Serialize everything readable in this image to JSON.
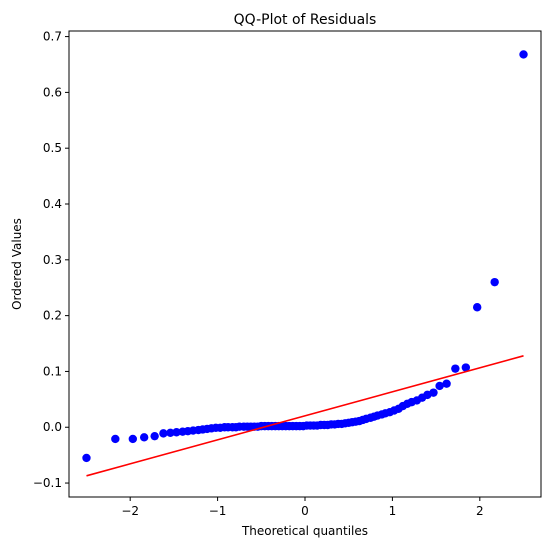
{
  "chart_data": {
    "type": "scatter",
    "title": "QQ-Plot of Residuals",
    "xlabel": "Theoretical quantiles",
    "ylabel": "Ordered Values",
    "xlim": [
      -2.7,
      2.7
    ],
    "ylim": [
      -0.125,
      0.71
    ],
    "xticks": [
      -2,
      -1,
      0,
      1,
      2
    ],
    "xtick_labels": [
      "−2",
      "−1",
      "0",
      "1",
      "2"
    ],
    "yticks": [
      -0.1,
      0.0,
      0.1,
      0.2,
      0.3,
      0.4,
      0.5,
      0.6,
      0.7
    ],
    "ytick_labels": [
      "−0.1",
      "0.0",
      "0.1",
      "0.2",
      "0.3",
      "0.4",
      "0.5",
      "0.6",
      "0.7"
    ],
    "grid": false,
    "point_color": "#0000ff",
    "line_color": "#ff0000",
    "fit_line": {
      "x": [
        -2.5,
        2.5
      ],
      "y": [
        -0.087,
        0.128
      ]
    },
    "points": [
      {
        "x": -2.5,
        "y": -0.055
      },
      {
        "x": -2.17,
        "y": -0.021
      },
      {
        "x": -1.97,
        "y": -0.021
      },
      {
        "x": -1.84,
        "y": -0.018
      },
      {
        "x": -1.72,
        "y": -0.016
      },
      {
        "x": -1.62,
        "y": -0.011
      },
      {
        "x": -1.54,
        "y": -0.01
      },
      {
        "x": -1.47,
        "y": -0.009
      },
      {
        "x": -1.4,
        "y": -0.008
      },
      {
        "x": -1.34,
        "y": -0.007
      },
      {
        "x": -1.28,
        "y": -0.006
      },
      {
        "x": -1.22,
        "y": -0.005
      },
      {
        "x": -1.17,
        "y": -0.004
      },
      {
        "x": -1.12,
        "y": -0.003
      },
      {
        "x": -1.07,
        "y": -0.002
      },
      {
        "x": -1.02,
        "y": -0.001
      },
      {
        "x": -0.97,
        "y": -0.001
      },
      {
        "x": -0.92,
        "y": 0.0
      },
      {
        "x": -0.88,
        "y": 0.0
      },
      {
        "x": -0.83,
        "y": 0.0
      },
      {
        "x": -0.79,
        "y": 0.0
      },
      {
        "x": -0.75,
        "y": 0.001
      },
      {
        "x": -0.7,
        "y": 0.001
      },
      {
        "x": -0.66,
        "y": 0.001
      },
      {
        "x": -0.62,
        "y": 0.001
      },
      {
        "x": -0.58,
        "y": 0.001
      },
      {
        "x": -0.54,
        "y": 0.001
      },
      {
        "x": -0.5,
        "y": 0.002
      },
      {
        "x": -0.46,
        "y": 0.002
      },
      {
        "x": -0.42,
        "y": 0.002
      },
      {
        "x": -0.38,
        "y": 0.002
      },
      {
        "x": -0.34,
        "y": 0.002
      },
      {
        "x": -0.3,
        "y": 0.002
      },
      {
        "x": -0.26,
        "y": 0.002
      },
      {
        "x": -0.22,
        "y": 0.002
      },
      {
        "x": -0.18,
        "y": 0.002
      },
      {
        "x": -0.14,
        "y": 0.002
      },
      {
        "x": -0.1,
        "y": 0.002
      },
      {
        "x": -0.06,
        "y": 0.002
      },
      {
        "x": -0.02,
        "y": 0.002
      },
      {
        "x": 0.02,
        "y": 0.003
      },
      {
        "x": 0.06,
        "y": 0.003
      },
      {
        "x": 0.1,
        "y": 0.003
      },
      {
        "x": 0.14,
        "y": 0.003
      },
      {
        "x": 0.18,
        "y": 0.004
      },
      {
        "x": 0.22,
        "y": 0.004
      },
      {
        "x": 0.26,
        "y": 0.004
      },
      {
        "x": 0.3,
        "y": 0.005
      },
      {
        "x": 0.34,
        "y": 0.005
      },
      {
        "x": 0.38,
        "y": 0.006
      },
      {
        "x": 0.42,
        "y": 0.006
      },
      {
        "x": 0.46,
        "y": 0.007
      },
      {
        "x": 0.5,
        "y": 0.008
      },
      {
        "x": 0.54,
        "y": 0.009
      },
      {
        "x": 0.58,
        "y": 0.01
      },
      {
        "x": 0.62,
        "y": 0.011
      },
      {
        "x": 0.66,
        "y": 0.013
      },
      {
        "x": 0.7,
        "y": 0.015
      },
      {
        "x": 0.75,
        "y": 0.017
      },
      {
        "x": 0.79,
        "y": 0.019
      },
      {
        "x": 0.83,
        "y": 0.021
      },
      {
        "x": 0.88,
        "y": 0.023
      },
      {
        "x": 0.92,
        "y": 0.025
      },
      {
        "x": 0.97,
        "y": 0.027
      },
      {
        "x": 1.02,
        "y": 0.03
      },
      {
        "x": 1.07,
        "y": 0.033
      },
      {
        "x": 1.12,
        "y": 0.038
      },
      {
        "x": 1.17,
        "y": 0.042
      },
      {
        "x": 1.22,
        "y": 0.045
      },
      {
        "x": 1.28,
        "y": 0.048
      },
      {
        "x": 1.34,
        "y": 0.053
      },
      {
        "x": 1.4,
        "y": 0.058
      },
      {
        "x": 1.47,
        "y": 0.062
      },
      {
        "x": 1.54,
        "y": 0.074
      },
      {
        "x": 1.62,
        "y": 0.078
      },
      {
        "x": 1.72,
        "y": 0.105
      },
      {
        "x": 1.84,
        "y": 0.107
      },
      {
        "x": 1.97,
        "y": 0.215
      },
      {
        "x": 2.17,
        "y": 0.26
      },
      {
        "x": 2.5,
        "y": 0.668
      }
    ]
  }
}
